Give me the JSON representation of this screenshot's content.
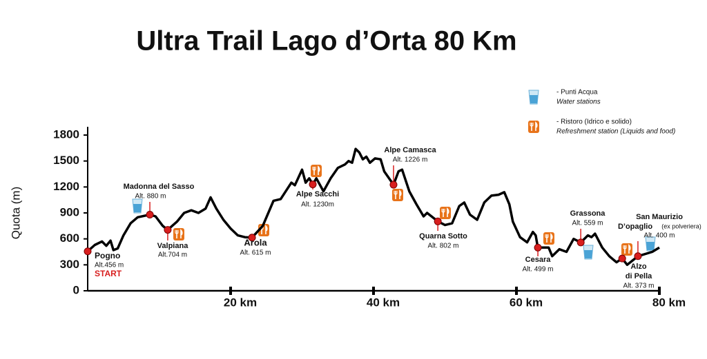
{
  "chart_data": {
    "type": "line",
    "title": "Ultra Trail Lago d’Orta 80 Km",
    "y_label": "Quota (m)",
    "xlim": [
      0,
      80
    ],
    "xticks": [
      {
        "value": 20,
        "label": "20 km"
      },
      {
        "value": 40,
        "label": "40 km"
      },
      {
        "value": 60,
        "label": "60 km"
      },
      {
        "value": 80,
        "label": "80 km"
      }
    ],
    "ylim": [
      0,
      1800
    ],
    "yticks": [
      0,
      300,
      600,
      900,
      1200,
      1500,
      1800
    ],
    "series": [
      {
        "color": "#000000",
        "x": [
          0,
          1,
          2,
          2.6,
          3.2,
          3.6,
          4.2,
          5,
          6,
          7,
          8.7,
          9.5,
          10.5,
          11.2,
          12.5,
          13.5,
          14.5,
          15.5,
          16.5,
          17.2,
          18,
          19,
          20,
          21,
          22,
          23,
          24.5,
          26,
          27,
          28.5,
          29,
          30,
          30.5,
          31,
          31.5,
          32,
          33,
          34,
          35,
          36,
          36.5,
          37,
          37.5,
          38,
          38.5,
          39,
          39.5,
          40.2,
          41,
          41.5,
          42.8,
          43.5,
          44,
          45,
          46,
          47,
          47.5,
          49,
          50,
          51,
          52,
          52.7,
          53.5,
          54.5,
          55.5,
          56.5,
          57.5,
          58.3,
          59,
          59.5,
          60.5,
          61.5,
          62.3,
          62.7,
          63,
          64.5,
          65,
          66,
          67,
          68,
          69,
          70,
          70.5,
          71,
          72,
          73,
          74,
          74.8,
          75.5,
          77,
          79,
          80
        ],
        "values": [
          456,
          530,
          570,
          520,
          580,
          470,
          490,
          640,
          780,
          850,
          880,
          860,
          750,
          704,
          800,
          900,
          930,
          900,
          950,
          1080,
          950,
          820,
          720,
          640,
          620,
          615,
          750,
          1040,
          1060,
          1250,
          1220,
          1400,
          1250,
          1300,
          1230,
          1300,
          1150,
          1300,
          1420,
          1460,
          1500,
          1480,
          1640,
          1600,
          1520,
          1550,
          1480,
          1530,
          1520,
          1380,
          1226,
          1380,
          1400,
          1150,
          1000,
          860,
          900,
          802,
          760,
          780,
          980,
          1020,
          880,
          820,
          1020,
          1100,
          1110,
          1140,
          1000,
          800,
          620,
          560,
          680,
          640,
          499,
          500,
          400,
          480,
          450,
          600,
          559,
          640,
          620,
          660,
          500,
          400,
          330,
          373,
          300,
          400,
          450,
          500
        ]
      }
    ],
    "checkpoints": [
      {
        "name": [
          "Pogno"
        ],
        "x": 0,
        "y": 456,
        "label": "Alt.456 m",
        "note": "START"
      },
      {
        "name": [
          "Madonna del Sasso"
        ],
        "x": 8.7,
        "y": 880,
        "label": "Alt. 880 m"
      },
      {
        "name": [
          "Valpiana"
        ],
        "x": 11.2,
        "y": 704,
        "label": "Alt.704 m"
      },
      {
        "name": [
          "Arola"
        ],
        "x": 23,
        "y": 615,
        "label": "Alt. 615 m"
      },
      {
        "name": [
          "Alpe Sacchi"
        ],
        "x": 31.5,
        "y": 1230,
        "label": "Alt. 1230m"
      },
      {
        "name": [
          "Alpe Camasca"
        ],
        "x": 42.8,
        "y": 1226,
        "label": "Alt. 1226 m"
      },
      {
        "name": [
          "Quarna Sotto"
        ],
        "x": 49,
        "y": 802,
        "label": "Alt. 802 m"
      },
      {
        "name": [
          "Cesara"
        ],
        "x": 63,
        "y": 499,
        "label": "Alt. 499 m"
      },
      {
        "name": [
          "Grassona"
        ],
        "x": 69,
        "y": 559,
        "label": "Alt. 559 m"
      },
      {
        "name": [
          "Alzo",
          "di Pella"
        ],
        "x": 74.8,
        "y": 373,
        "label": "Alt. 373 m"
      },
      {
        "name": [
          "San Maurizio",
          "D’opaglio"
        ],
        "x": 77,
        "y": 400,
        "label": "Alt. 400 m",
        "note": "(ex polveriera)"
      }
    ],
    "legend": [
      {
        "label": "- Punti Acqua",
        "sublabel": "Water stations"
      },
      {
        "label": "- Ristoro (Idrico e solido)",
        "sublabel": "Refreshment station (Liquids and food)"
      }
    ]
  }
}
